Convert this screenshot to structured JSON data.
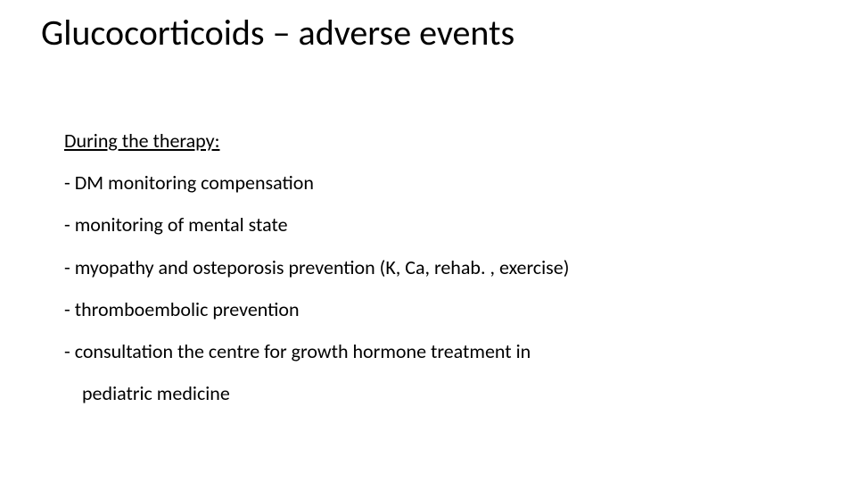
{
  "slide": {
    "title": "Glucocorticoids – adverse events",
    "subheading": "During the therapy:",
    "items": [
      "- DM monitoring compensation",
      "- monitoring of mental state",
      "- myopathy and osteporosis prevention (K, Ca, rehab. , exercise)",
      "- thromboembolic prevention",
      "- consultation the centre for growth hormone treatment in"
    ],
    "continuation": "pediatric medicine",
    "colors": {
      "background": "#ffffff",
      "text": "#000000"
    },
    "typography": {
      "title_fontsize": 40,
      "body_fontsize": 22,
      "font_family": "Calibri"
    }
  }
}
